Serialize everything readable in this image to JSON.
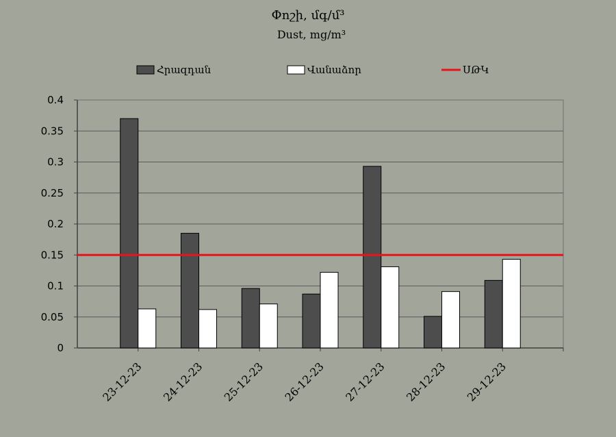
{
  "chart_data": {
    "type": "bar",
    "title": "Փոշի, մգ/մ³",
    "subtitle": "Dust, mg/m³",
    "categories": [
      "23-12-23",
      "24-12-23",
      "25-12-23",
      "26-12-23",
      "27-12-23",
      "28-12-23",
      "29-12-23"
    ],
    "series": [
      {
        "name": "Հրազդան",
        "color": "#4d4d4d",
        "values": [
          0.37,
          0.185,
          0.096,
          0.087,
          0.293,
          0.051,
          0.109
        ]
      },
      {
        "name": "Վանաձոր",
        "color": "#ffffff",
        "values": [
          0.063,
          0.062,
          0.071,
          0.122,
          0.131,
          0.091,
          0.143
        ]
      }
    ],
    "reference_line": {
      "name": "ՍԹԿ",
      "value": 0.15,
      "color": "#e8131b"
    },
    "yticks": [
      "0",
      "0.05",
      "0.1",
      "0.15",
      "0.2",
      "0.25",
      "0.3",
      "0.35",
      "0.4"
    ],
    "ylim": [
      0,
      0.4
    ],
    "grid": true,
    "legend_position": "top"
  }
}
